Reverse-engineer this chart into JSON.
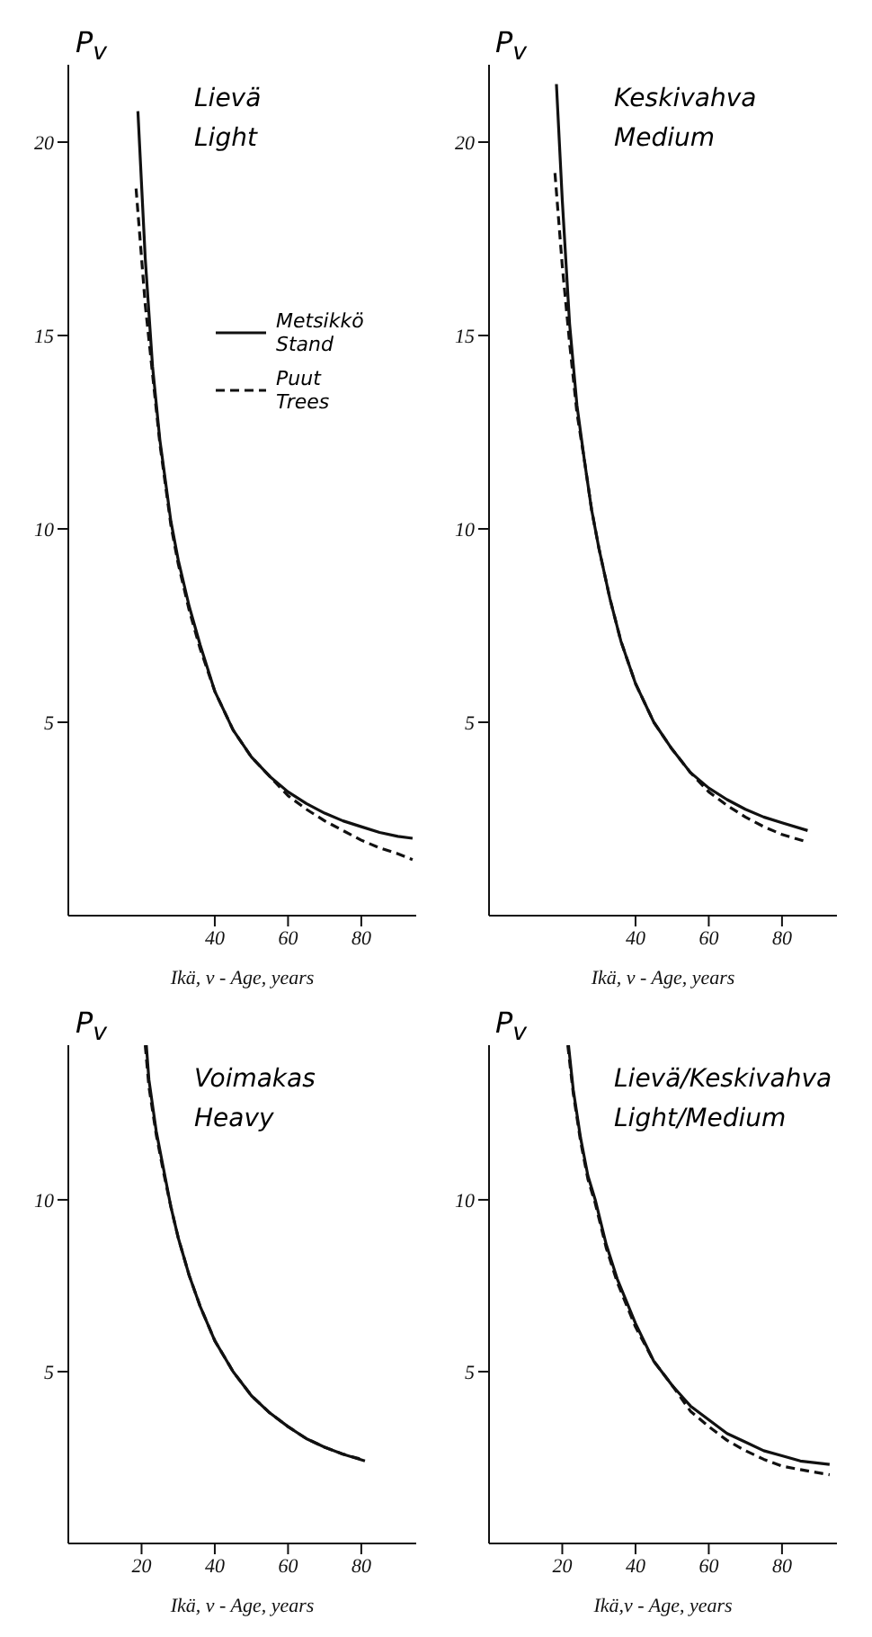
{
  "chart_data": [
    {
      "type": "line",
      "title": "Lievä",
      "subtitle": "Light",
      "ylabel": "P$_{v}$",
      "xlabel": "Ikä, v - Age, years",
      "xlim": [
        0,
        95
      ],
      "xticks": [
        40,
        60,
        80
      ],
      "ylim": [
        0,
        22
      ],
      "yticks": [
        5,
        10,
        15,
        20
      ],
      "legend": "right",
      "marker": "none",
      "series": [
        {
          "name": "Metsikkö Stand",
          "color": "#111111",
          "line_style": "solid",
          "x": [
            19,
            21,
            23,
            25,
            28,
            30,
            33,
            36,
            40,
            45,
            50,
            55,
            60,
            65,
            70,
            75,
            80,
            85,
            90,
            94
          ],
          "values": [
            20.8,
            17,
            14.2,
            12.3,
            10.2,
            9.2,
            8.0,
            7.0,
            5.8,
            4.8,
            4.1,
            3.6,
            3.2,
            2.9,
            2.65,
            2.45,
            2.3,
            2.15,
            2.05,
            2.0
          ]
        },
        {
          "name": "Puut Trees",
          "color": "#111111",
          "line_style": "dashed",
          "x": [
            18.5,
            20,
            21,
            23,
            25,
            28,
            30,
            33,
            36,
            40,
            45,
            50,
            55,
            60,
            65,
            70,
            75,
            80,
            85,
            90,
            94
          ],
          "values": [
            18.8,
            17.0,
            15.8,
            14.0,
            12.2,
            10.1,
            9.1,
            7.9,
            6.9,
            5.8,
            4.8,
            4.1,
            3.6,
            3.1,
            2.75,
            2.45,
            2.2,
            1.95,
            1.75,
            1.6,
            1.45
          ]
        }
      ]
    },
    {
      "type": "line",
      "title": "Keskivahva",
      "subtitle": "Medium",
      "ylabel": "P$_{v}$",
      "xlabel": "Ikä, v - Age, years",
      "xlim": [
        0,
        95
      ],
      "xticks": [
        40,
        60,
        80
      ],
      "ylim": [
        0,
        22
      ],
      "yticks": [
        5,
        10,
        15,
        20
      ],
      "legend": false,
      "marker": "none",
      "series": [
        {
          "color": "#111111",
          "line_style": "solid",
          "x": [
            18.4,
            20,
            22,
            24,
            26,
            28,
            30,
            33,
            36,
            40,
            45,
            50,
            55,
            60,
            65,
            70,
            75,
            80,
            87
          ],
          "values": [
            21.5,
            18.5,
            15.3,
            13.2,
            11.8,
            10.5,
            9.5,
            8.2,
            7.1,
            6.0,
            5.0,
            4.3,
            3.7,
            3.3,
            3.0,
            2.75,
            2.55,
            2.4,
            2.2
          ]
        },
        {
          "color": "#111111",
          "line_style": "dashed",
          "x": [
            18,
            19,
            20,
            22,
            24,
            26,
            28,
            30,
            33,
            36,
            40,
            45,
            50,
            55,
            60,
            65,
            70,
            75,
            80,
            87
          ],
          "values": [
            19.2,
            18.0,
            16.8,
            14.8,
            13.0,
            11.8,
            10.5,
            9.5,
            8.2,
            7.1,
            6.0,
            5.0,
            4.3,
            3.7,
            3.2,
            2.85,
            2.55,
            2.3,
            2.1,
            1.9
          ]
        }
      ]
    },
    {
      "type": "line",
      "title": "Voimakas",
      "subtitle": "Heavy",
      "ylabel": "P$_{v}$",
      "xlabel": "Ikä, v - Age, years",
      "xlim": [
        0,
        95
      ],
      "xticks": [
        20,
        40,
        60,
        80
      ],
      "ylim": [
        0,
        14.5
      ],
      "yticks": [
        5,
        10
      ],
      "legend": false,
      "marker": "none",
      "series": [
        {
          "color": "#111111",
          "line_style": "solid",
          "x": [
            21.3,
            22,
            24,
            26,
            28,
            30,
            33,
            36,
            40,
            45,
            50,
            55,
            60,
            65,
            70,
            75,
            81
          ],
          "values": [
            14.5,
            13.5,
            12.0,
            10.9,
            9.8,
            8.9,
            7.8,
            6.9,
            5.9,
            5.0,
            4.3,
            3.8,
            3.4,
            3.05,
            2.8,
            2.6,
            2.4
          ]
        },
        {
          "color": "#111111",
          "line_style": "dashed",
          "x": [
            21.0,
            22,
            24,
            26,
            28,
            30,
            33,
            36,
            40,
            45,
            50,
            55,
            60,
            65,
            70,
            75,
            80
          ],
          "values": [
            14.5,
            13.3,
            11.9,
            10.8,
            9.8,
            8.9,
            7.8,
            6.9,
            5.9,
            5.0,
            4.3,
            3.8,
            3.4,
            3.05,
            2.8,
            2.6,
            2.45
          ]
        }
      ]
    },
    {
      "type": "line",
      "title": "Lievä/Keskivahva",
      "subtitle": "Light/Medium",
      "ylabel": "P$_{v}$",
      "xlabel": "Ikä,v - Age, years",
      "xlim": [
        0,
        95
      ],
      "xticks": [
        20,
        40,
        60,
        80
      ],
      "ylim": [
        0,
        14.5
      ],
      "yticks": [
        5,
        10
      ],
      "legend": false,
      "marker": "none",
      "series": [
        {
          "color": "#111111",
          "line_style": "solid",
          "x": [
            21.7,
            23,
            25,
            27,
            29,
            32,
            35,
            40,
            45,
            50,
            55,
            60,
            65,
            70,
            75,
            80,
            85,
            93
          ],
          "values": [
            14.5,
            13.2,
            11.8,
            10.7,
            10.0,
            8.7,
            7.7,
            6.4,
            5.3,
            4.6,
            4.0,
            3.6,
            3.2,
            2.95,
            2.7,
            2.55,
            2.4,
            2.3
          ]
        },
        {
          "color": "#111111",
          "line_style": "dashed",
          "x": [
            21.5,
            23,
            25,
            27,
            29,
            32,
            35,
            40,
            45,
            50,
            55,
            60,
            65,
            70,
            75,
            80,
            85,
            93
          ],
          "values": [
            14.5,
            13.1,
            11.7,
            10.6,
            9.9,
            8.6,
            7.6,
            6.3,
            5.3,
            4.6,
            3.85,
            3.4,
            3.0,
            2.7,
            2.45,
            2.25,
            2.15,
            2.0
          ]
        }
      ]
    }
  ]
}
